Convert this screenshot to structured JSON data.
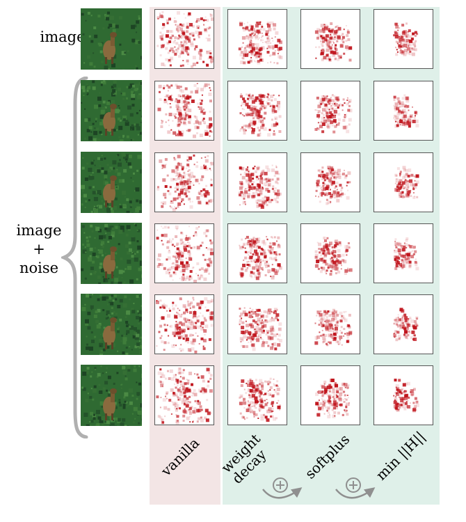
{
  "row_labels": {
    "image": "image",
    "noise_line1": "image",
    "noise_line2": "+",
    "noise_line3": "noise"
  },
  "column_labels": [
    "vanilla",
    "weight\ndecay",
    "softplus",
    "min ||H||"
  ],
  "column_groups": [
    {
      "columns": [
        "vanilla"
      ],
      "background": "#f3e5e5"
    },
    {
      "columns": [
        "weight\ndecay",
        "softplus",
        "min ||H||"
      ],
      "background": "#dff0e9"
    }
  ],
  "rows": [
    "image",
    "image + noise",
    "image + noise",
    "image + noise",
    "image + noise",
    "image + noise"
  ],
  "arrow_symbol": "⊕",
  "colors": {
    "heatmap": "#c0141c",
    "grass": "#2f6a32",
    "animal": "#8a6a3e",
    "brace": "#b0b0b0",
    "arrow": "#8f8f8f"
  },
  "icons": [
    "brace-icon",
    "arrow-icon",
    "plus-circle-icon"
  ]
}
